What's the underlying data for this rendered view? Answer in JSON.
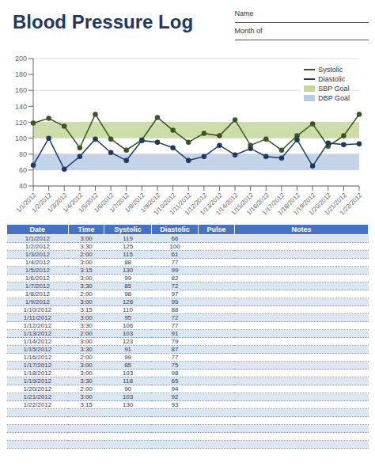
{
  "chart_data": {
    "type": "line",
    "title": "Blood Pressure Log",
    "annotations": [
      "Name",
      "Month of"
    ],
    "categories": [
      "1/1/2012",
      "1/2/2012",
      "1/3/2012",
      "1/4/2012",
      "1/5/2012",
      "1/6/2012",
      "1/7/2012",
      "1/8/2012",
      "1/9/2012",
      "1/10/2012",
      "1/11/2012",
      "1/12/2012",
      "1/13/2012",
      "1/14/2012",
      "1/15/2012",
      "1/16/2012",
      "1/17/2012",
      "1/18/2012",
      "1/19/2012",
      "1/20/2012",
      "1/21/2012",
      "1/22/2012"
    ],
    "series": [
      {
        "name": "Systolic",
        "type": "line",
        "color": "#375623",
        "marker": "o",
        "values": [
          119,
          125,
          115,
          88,
          130,
          99,
          85,
          98,
          126,
          110,
          95,
          106,
          103,
          123,
          91,
          99,
          85,
          103,
          118,
          90,
          103,
          130
        ]
      },
      {
        "name": "Diastolic",
        "type": "line",
        "color": "#1F3864",
        "marker": "o",
        "values": [
          66,
          100,
          61,
          77,
          99,
          82,
          72,
          97,
          95,
          88,
          72,
          77,
          91,
          79,
          87,
          77,
          75,
          98,
          65,
          94,
          92,
          93
        ]
      },
      {
        "name": "SBP Goal",
        "type": "band",
        "color": "#C4D79B",
        "range": [
          100,
          120
        ]
      },
      {
        "name": "DBP Goal",
        "type": "band",
        "color": "#B8CCE4",
        "range": [
          60,
          80
        ]
      }
    ],
    "ylim": [
      40,
      200
    ],
    "yticks": [
      40,
      60,
      80,
      100,
      120,
      140,
      160,
      180,
      200
    ],
    "grid": true,
    "legend": "upper right",
    "table": {
      "columns": [
        "Date",
        "Time",
        "Systolic",
        "Diastolic",
        "Pulse",
        "Notes"
      ],
      "times": [
        "3:00",
        "3:30",
        "2:00",
        "3:00",
        "3:15",
        "3:00",
        "3:30",
        "2:00",
        "3:00",
        "3:15",
        "3:00",
        "3:30",
        "2:00",
        "3:00",
        "3:30",
        "2:00",
        "3:00",
        "3:00",
        "3:30",
        "2:00",
        "3:00",
        "3:15"
      ]
    }
  }
}
